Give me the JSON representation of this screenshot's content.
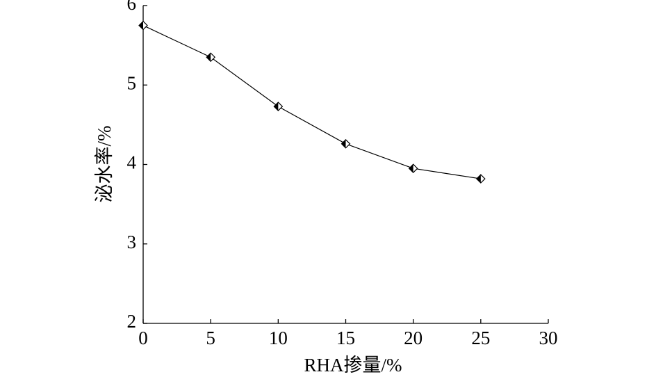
{
  "chart_data": {
    "type": "line",
    "x_label": "RHA掺量/%",
    "y_label": "泌水率/%",
    "x": [
      0,
      5,
      10,
      15,
      20,
      25
    ],
    "series": [
      {
        "color": "#000000",
        "values": [
          5.75,
          5.35,
          4.73,
          4.26,
          3.95,
          3.82
        ]
      }
    ],
    "xlim": [
      0,
      30
    ],
    "xticks": [
      0,
      5,
      10,
      15,
      20,
      25,
      30
    ],
    "ylim": [
      2,
      6
    ],
    "yticks": [
      2,
      3,
      4,
      5,
      6
    ],
    "grid": false
  }
}
